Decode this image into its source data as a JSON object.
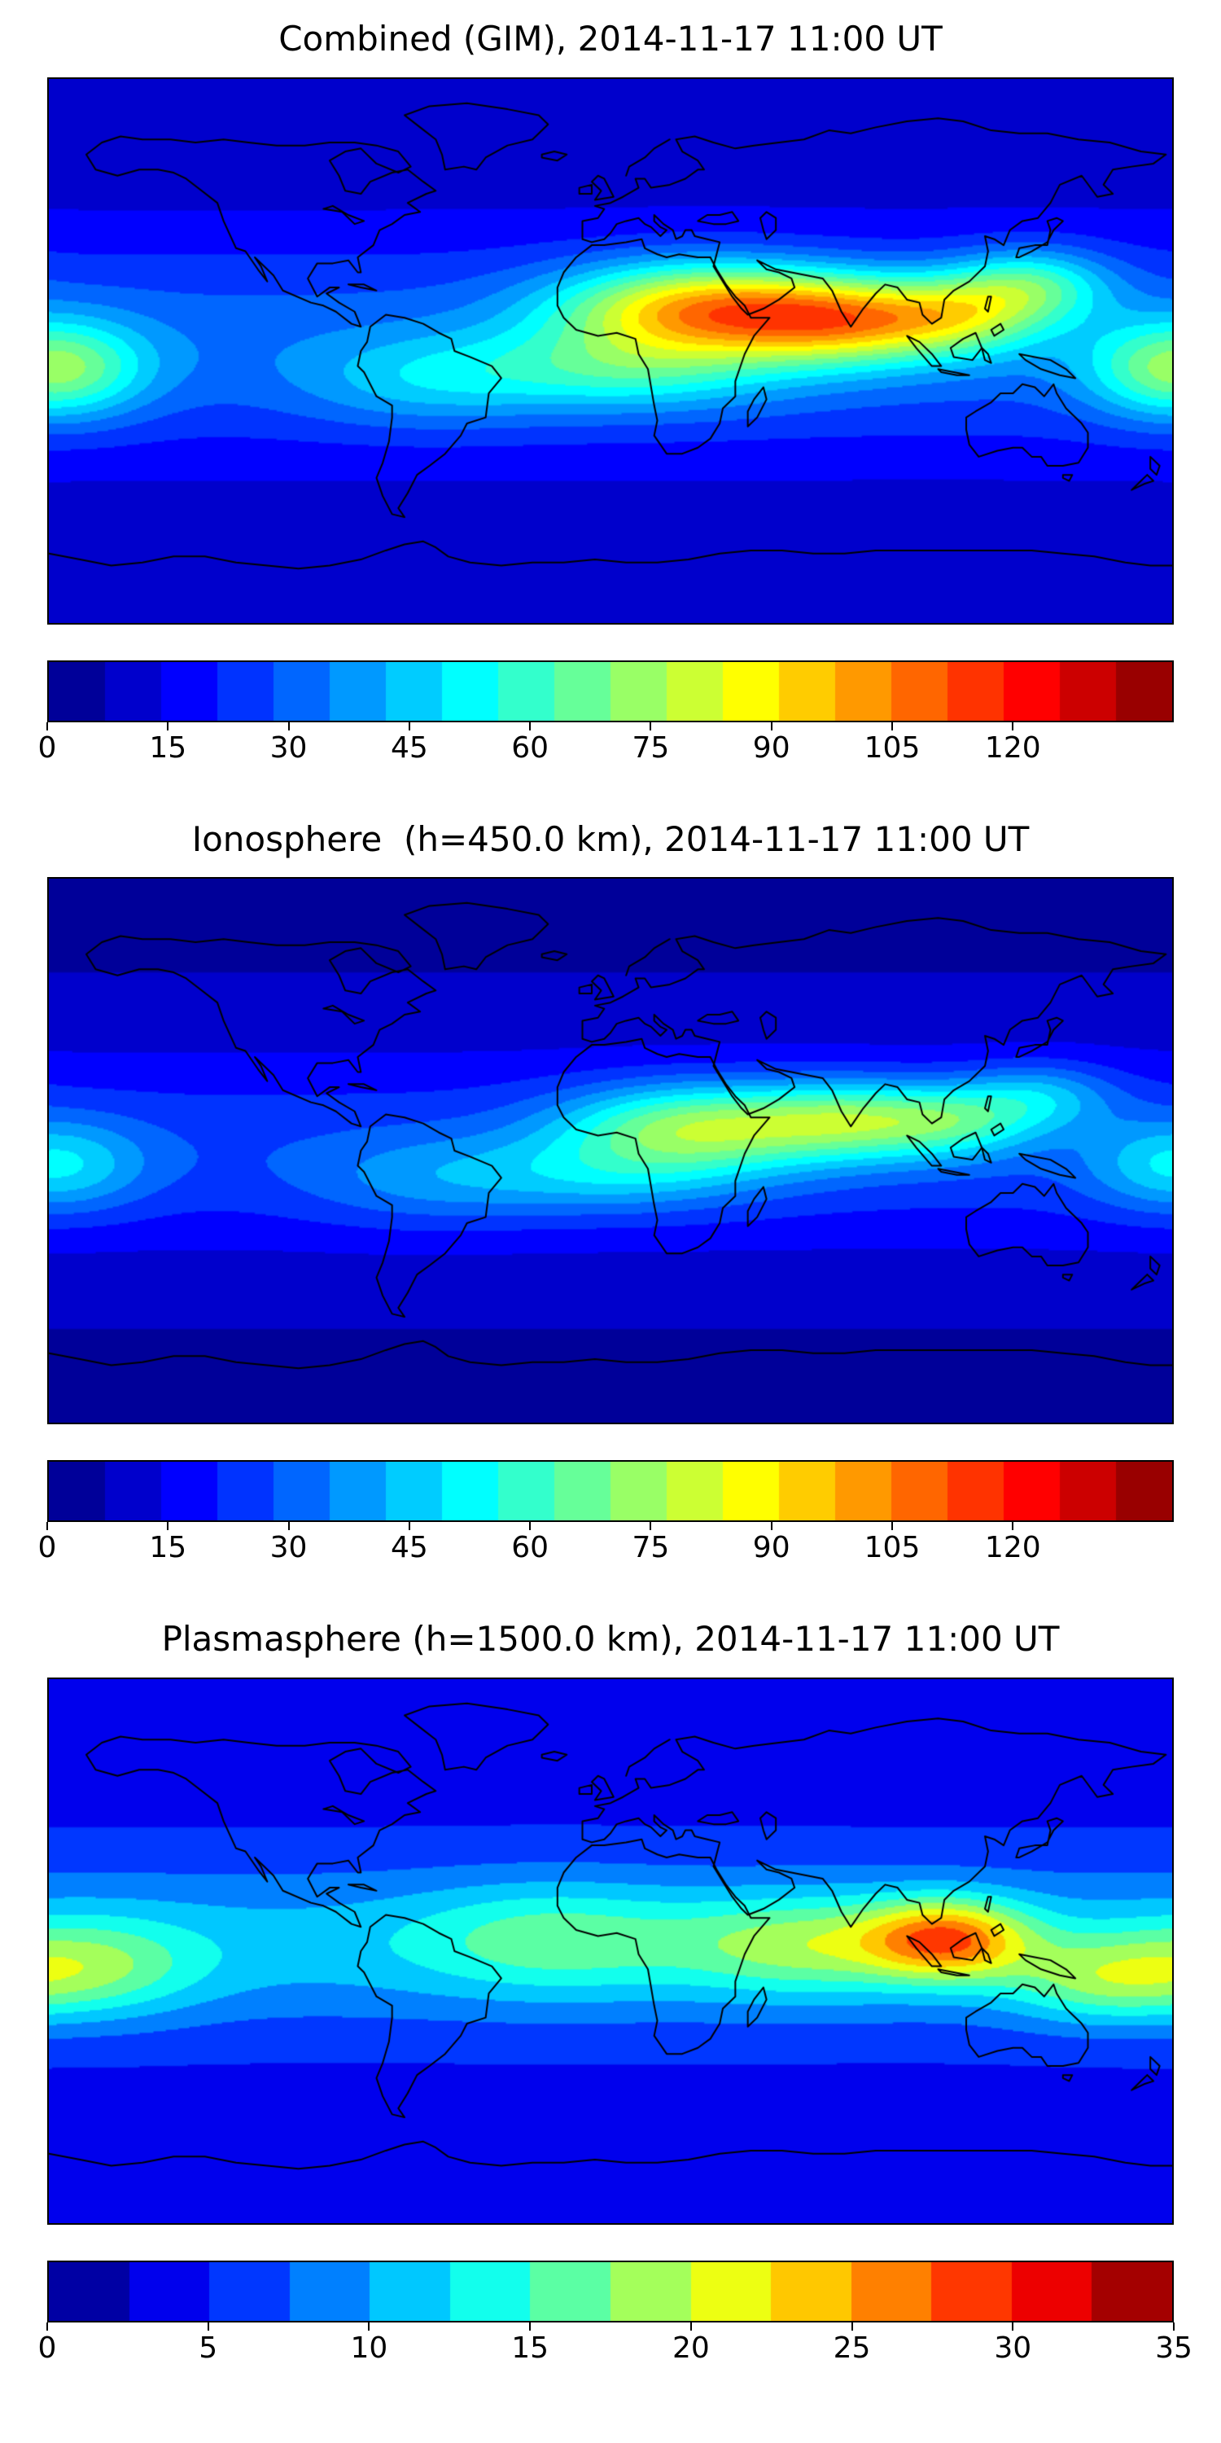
{
  "figure": {
    "background_color": "#ffffff",
    "coastline_color": "#000000",
    "frame_color": "#000000"
  },
  "chart_data": [
    {
      "type": "heatmap",
      "subtype": "filled-contour-world-map",
      "title": "Combined (GIM), 2014-11-17 11:00 UT",
      "colormap": "jet",
      "projection": "equirectangular",
      "lon_range": [
        -180,
        180
      ],
      "lat_range": [
        -90,
        90
      ],
      "vmin": 0,
      "vmax": 140,
      "levels": 20,
      "colorbar_ticks": [
        0,
        15,
        30,
        45,
        60,
        75,
        90,
        105,
        120
      ],
      "peak_value_approx": 110,
      "peak_location_approx": {
        "lon": 30,
        "lat": 14
      },
      "field_model": {
        "base": 8,
        "gaussians": [
          {
            "amp": 24,
            "lon": 0,
            "lat": 2,
            "slon": 10000,
            "slat": 38
          },
          {
            "amp": 68,
            "lon": 30,
            "lat": 14,
            "slon": 45,
            "slat": 15
          },
          {
            "amp": 52,
            "lon": 75,
            "lat": 10,
            "slon": 35,
            "slat": 14
          },
          {
            "amp": 38,
            "lon": 112,
            "lat": 12,
            "slon": 28,
            "slat": 13
          },
          {
            "amp": 33,
            "lon": 135,
            "lat": 22,
            "slon": 25,
            "slat": 12
          },
          {
            "amp": 28,
            "lon": 5,
            "lat": -6,
            "slon": 50,
            "slat": 14
          },
          {
            "amp": 44,
            "lon": -178,
            "lat": -6,
            "slon": 28,
            "slat": 16
          },
          {
            "amp": 16,
            "lon": -60,
            "lat": -10,
            "slon": 40,
            "slat": 15
          }
        ]
      }
    },
    {
      "type": "heatmap",
      "subtype": "filled-contour-world-map",
      "title": "Ionosphere  (h=450.0 km), 2014-11-17 11:00 UT",
      "colormap": "jet",
      "projection": "equirectangular",
      "lon_range": [
        -180,
        180
      ],
      "lat_range": [
        -90,
        90
      ],
      "vmin": 0,
      "vmax": 140,
      "levels": 20,
      "colorbar_ticks": [
        0,
        15,
        30,
        45,
        60,
        75,
        90,
        105,
        120
      ],
      "peak_value_approx": 78,
      "peak_location_approx": {
        "lon": 27,
        "lat": 8
      },
      "field_model": {
        "base": 6,
        "gaussians": [
          {
            "amp": 20,
            "lon": 0,
            "lat": 0,
            "slon": 10000,
            "slat": 34
          },
          {
            "amp": 46,
            "lon": 27,
            "lat": 8,
            "slon": 42,
            "slat": 14
          },
          {
            "amp": 40,
            "lon": 78,
            "lat": 10,
            "slon": 34,
            "slat": 13
          },
          {
            "amp": 26,
            "lon": 112,
            "lat": 10,
            "slon": 26,
            "slat": 12
          },
          {
            "amp": 22,
            "lon": 138,
            "lat": 18,
            "slon": 24,
            "slat": 11
          },
          {
            "amp": 20,
            "lon": 0,
            "lat": -8,
            "slon": 48,
            "slat": 13
          },
          {
            "amp": 26,
            "lon": -178,
            "lat": -5,
            "slon": 28,
            "slat": 15
          },
          {
            "amp": 12,
            "lon": -60,
            "lat": -10,
            "slon": 40,
            "slat": 15
          }
        ]
      }
    },
    {
      "type": "heatmap",
      "subtype": "filled-contour-world-map",
      "title": "Plasmasphere (h=1500.0 km), 2014-11-17 11:00 UT",
      "colormap": "jet",
      "projection": "equirectangular",
      "lon_range": [
        -180,
        180
      ],
      "lat_range": [
        -90,
        90
      ],
      "vmin": 0,
      "vmax": 35,
      "levels": 14,
      "colorbar_ticks": [
        0,
        5,
        10,
        15,
        20,
        25,
        30,
        35
      ],
      "peak_value_approx": 29,
      "peak_location_approx": {
        "lon": 108,
        "lat": 4
      },
      "field_model": {
        "base": 4,
        "gaussians": [
          {
            "amp": 7,
            "lon": 0,
            "lat": 2,
            "slon": 10000,
            "slat": 28
          },
          {
            "amp": 16,
            "lon": 108,
            "lat": 4,
            "slon": 26,
            "slat": 13
          },
          {
            "amp": 8,
            "lon": 62,
            "lat": 2,
            "slon": 40,
            "slat": 16
          },
          {
            "amp": 6,
            "lon": -18,
            "lat": 4,
            "slon": 45,
            "slat": 18
          },
          {
            "amp": 8,
            "lon": -168,
            "lat": -6,
            "slon": 35,
            "slat": 16
          },
          {
            "amp": 7,
            "lon": 155,
            "lat": -10,
            "slon": 30,
            "slat": 14
          }
        ]
      }
    }
  ]
}
